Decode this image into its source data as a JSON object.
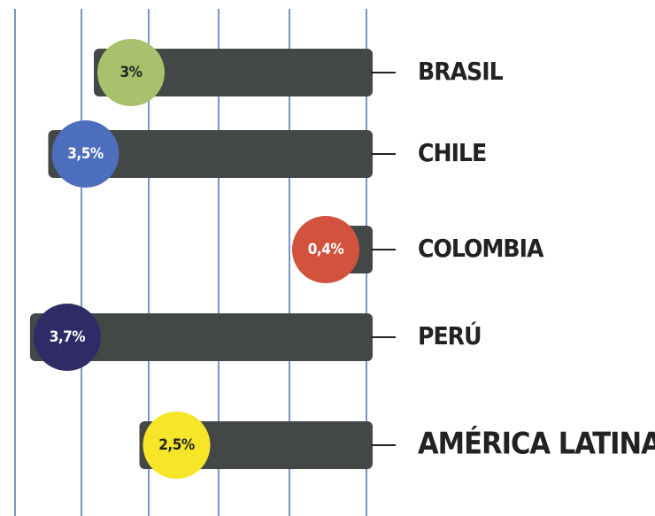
{
  "chart_data": {
    "type": "bar",
    "orientation": "horizontal",
    "categories": [
      "BRASIL",
      "CHILE",
      "COLOMBIA",
      "PERÚ",
      "AMÉRICA LATINA"
    ],
    "values": [
      3,
      3.5,
      0.4,
      3.7,
      2.5
    ],
    "value_labels": [
      "3%",
      "3,5%",
      "0,4%",
      "3,7%",
      "2,5%"
    ],
    "color": "#434745",
    "colors": [
      "#a8c16c",
      "#4d6dbd",
      "#d1533d",
      "#2f2b66",
      "#f6e627"
    ],
    "xlim": [
      0,
      4
    ]
  }
}
